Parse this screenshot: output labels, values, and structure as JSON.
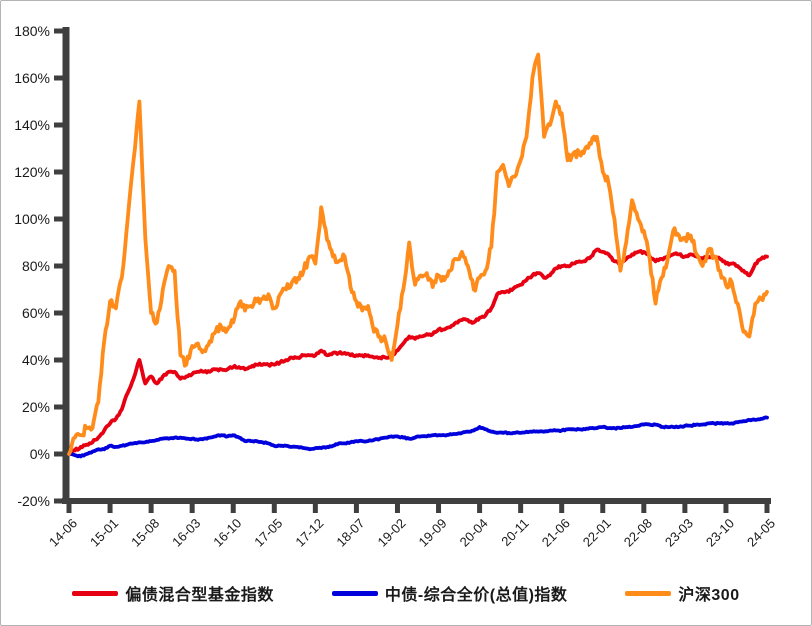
{
  "figure": {
    "background": "#ffffff",
    "border_color": "#b3b3b3",
    "axis_color": "#3f3f3f",
    "tick_label_color": "#1a1a1a"
  },
  "chart_data": {
    "type": "line",
    "title": "",
    "xlabel": "",
    "ylabel": "",
    "ylim": [
      -20,
      180
    ],
    "y_unit": "%",
    "grid": false,
    "legend_position": "bottom",
    "x_start": "2014-06",
    "x_end": "2024-05",
    "x_frequency": "monthly",
    "y_ticks": [
      {
        "v": 180,
        "label": "180%"
      },
      {
        "v": 160,
        "label": "160%"
      },
      {
        "v": 140,
        "label": "140%"
      },
      {
        "v": 120,
        "label": "120%"
      },
      {
        "v": 100,
        "label": "100%"
      },
      {
        "v": 80,
        "label": "80%"
      },
      {
        "v": 60,
        "label": "60%"
      },
      {
        "v": 40,
        "label": "40%"
      },
      {
        "v": 20,
        "label": "20%"
      },
      {
        "v": 0,
        "label": "0%"
      },
      {
        "v": -20,
        "label": "-20%"
      }
    ],
    "x_ticks": [
      {
        "i": 0,
        "label": "14-06"
      },
      {
        "i": 7,
        "label": "15-01"
      },
      {
        "i": 14,
        "label": "15-08"
      },
      {
        "i": 21,
        "label": "16-03"
      },
      {
        "i": 28,
        "label": "16-10"
      },
      {
        "i": 35,
        "label": "17-05"
      },
      {
        "i": 42,
        "label": "17-12"
      },
      {
        "i": 49,
        "label": "18-07"
      },
      {
        "i": 56,
        "label": "19-02"
      },
      {
        "i": 63,
        "label": "19-09"
      },
      {
        "i": 70,
        "label": "20-04"
      },
      {
        "i": 77,
        "label": "20-11"
      },
      {
        "i": 84,
        "label": "21-06"
      },
      {
        "i": 91,
        "label": "22-01"
      },
      {
        "i": 98,
        "label": "22-08"
      },
      {
        "i": 105,
        "label": "23-03"
      },
      {
        "i": 112,
        "label": "23-10"
      },
      {
        "i": 119,
        "label": "24-05"
      }
    ],
    "series": [
      {
        "key": "hybrid-fund-index",
        "name": "偏债混合型基金指数",
        "color": "#e60012",
        "values": [
          0,
          1.5,
          3,
          4,
          5,
          7,
          10,
          13,
          15,
          19,
          26,
          32,
          40,
          30,
          33,
          30,
          33,
          35,
          35,
          32,
          33,
          34,
          35,
          35,
          35,
          36,
          36,
          36,
          37,
          37,
          36,
          37,
          38,
          38,
          38,
          38,
          39,
          40,
          41,
          41,
          42,
          42,
          42,
          44,
          42,
          43,
          43,
          43,
          42,
          42,
          42,
          42,
          41,
          41,
          41,
          42,
          44,
          47,
          50,
          49,
          50,
          51,
          51,
          53,
          53,
          54,
          56,
          57,
          57,
          56,
          58,
          59,
          62,
          68,
          69,
          69,
          71,
          72,
          74,
          76,
          77,
          75,
          76,
          79,
          80,
          80,
          81,
          82,
          82,
          84,
          87,
          86,
          85,
          82,
          81,
          83,
          85,
          86,
          86,
          84,
          82,
          83,
          84,
          85,
          85,
          84,
          85,
          84,
          83,
          84,
          84,
          83,
          81,
          81,
          80,
          78,
          76,
          81,
          83,
          84
        ]
      },
      {
        "key": "chinabond-index",
        "name": "中债-综合全价(总值)指数",
        "color": "#0000dc",
        "values": [
          0,
          -0.5,
          -1,
          0,
          1,
          2,
          2,
          3.5,
          3,
          3.5,
          4,
          4.5,
          5,
          5,
          5.5,
          6,
          6.5,
          6.5,
          7,
          7,
          6.5,
          6.5,
          6,
          6.5,
          7,
          7.5,
          8,
          7.5,
          8,
          7,
          5.5,
          5.5,
          5.5,
          5,
          4.5,
          3.5,
          3.5,
          3.5,
          3,
          3,
          2.5,
          2,
          2.5,
          2.5,
          3,
          3.5,
          4.5,
          4.5,
          5,
          5.5,
          5.5,
          5.5,
          6,
          6.5,
          7,
          7.5,
          7.5,
          7,
          6.5,
          7,
          7.5,
          7.5,
          8,
          8,
          8,
          8.5,
          8.5,
          9,
          9.5,
          10,
          11.5,
          10.5,
          9.5,
          9,
          9,
          9,
          9,
          9,
          9.5,
          9.5,
          9.5,
          9.5,
          10,
          10,
          10,
          10.5,
          10.5,
          10.5,
          10.5,
          11,
          11,
          11.5,
          11,
          11,
          11,
          11.5,
          11.5,
          12,
          12.5,
          12.5,
          12.5,
          11.5,
          11.5,
          11.5,
          11.5,
          12,
          12,
          12.5,
          12.5,
          13,
          13,
          13,
          13,
          13,
          13.5,
          14,
          14.5,
          14.5,
          15,
          15.5
        ]
      },
      {
        "key": "csi300",
        "name": "沪深300",
        "color": "#ff8c1a",
        "values": [
          0,
          7,
          8,
          11,
          11,
          22,
          48,
          65,
          62,
          75,
          100,
          125,
          150,
          92,
          60,
          56,
          70,
          80,
          78,
          42,
          38,
          46,
          47,
          44,
          48,
          52,
          54,
          53,
          56,
          64,
          61,
          63,
          65,
          66,
          68,
          62,
          68,
          70,
          73,
          75,
          78,
          84,
          81,
          105,
          91,
          84,
          82,
          84,
          71,
          65,
          61,
          63,
          52,
          50,
          48,
          40,
          55,
          70,
          90,
          72,
          76,
          77,
          71,
          76,
          74,
          78,
          83,
          86,
          80,
          70,
          75,
          78,
          88,
          120,
          123,
          114,
          118,
          125,
          135,
          160,
          170,
          135,
          140,
          150,
          145,
          125,
          128,
          128,
          130,
          132,
          135,
          120,
          115,
          100,
          78,
          90,
          108,
          100,
          95,
          83,
          64,
          75,
          82,
          95,
          93,
          92,
          93,
          85,
          80,
          87,
          84,
          78,
          72,
          73,
          64,
          52,
          50,
          64,
          66,
          69
        ]
      }
    ]
  },
  "legend": {
    "items": [
      {
        "label": "偏债混合型基金指数",
        "color": "#e60012"
      },
      {
        "label": "中债-综合全价(总值)指数",
        "color": "#0000dc"
      },
      {
        "label": "沪深300",
        "color": "#ff8c1a"
      }
    ]
  }
}
